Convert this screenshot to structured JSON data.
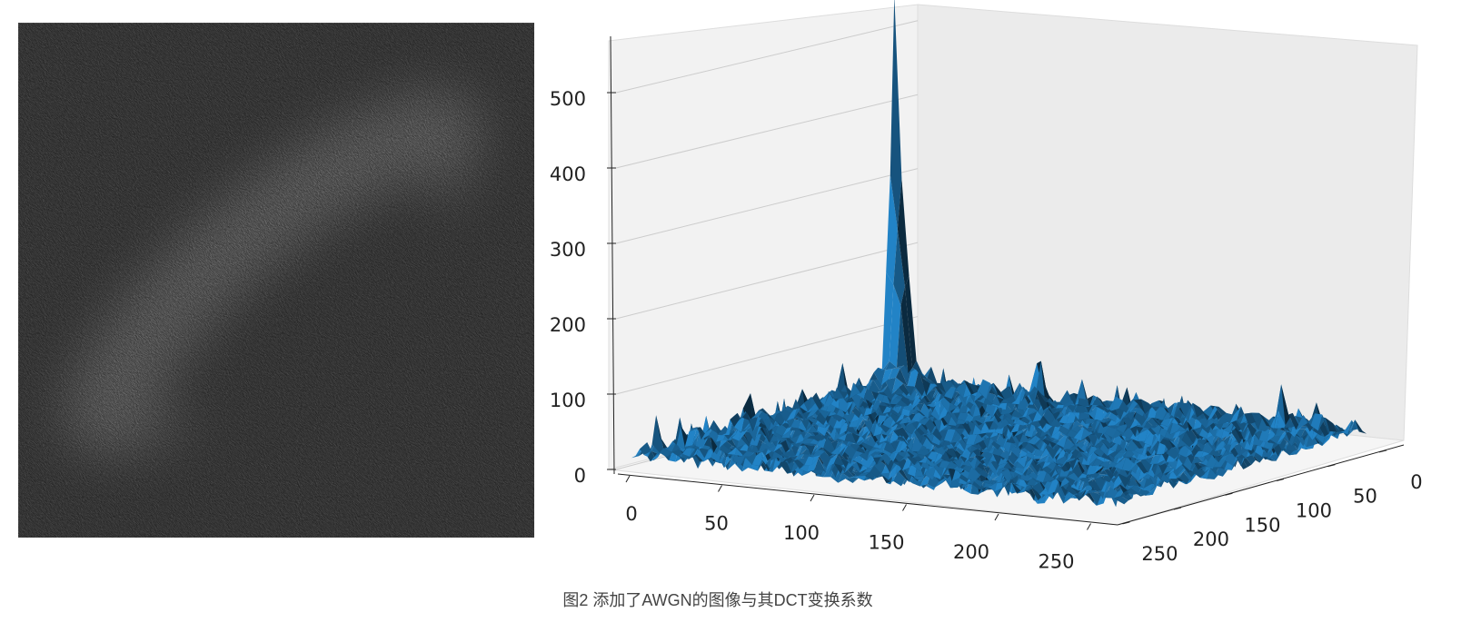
{
  "chart_data": {
    "type": "surface3d",
    "caption": "图2 添加了AWGN的图像与其DCT变换系数",
    "color": "#1f77b4",
    "xlim": [
      0,
      256
    ],
    "xticks": [
      0,
      50,
      100,
      150,
      200,
      250
    ],
    "ylim": [
      0,
      256
    ],
    "yticks": [
      0,
      50,
      100,
      150,
      200,
      250
    ],
    "zlim": [
      0,
      570
    ],
    "zticks": [
      0,
      100,
      200,
      300,
      400,
      500
    ]
  }
}
